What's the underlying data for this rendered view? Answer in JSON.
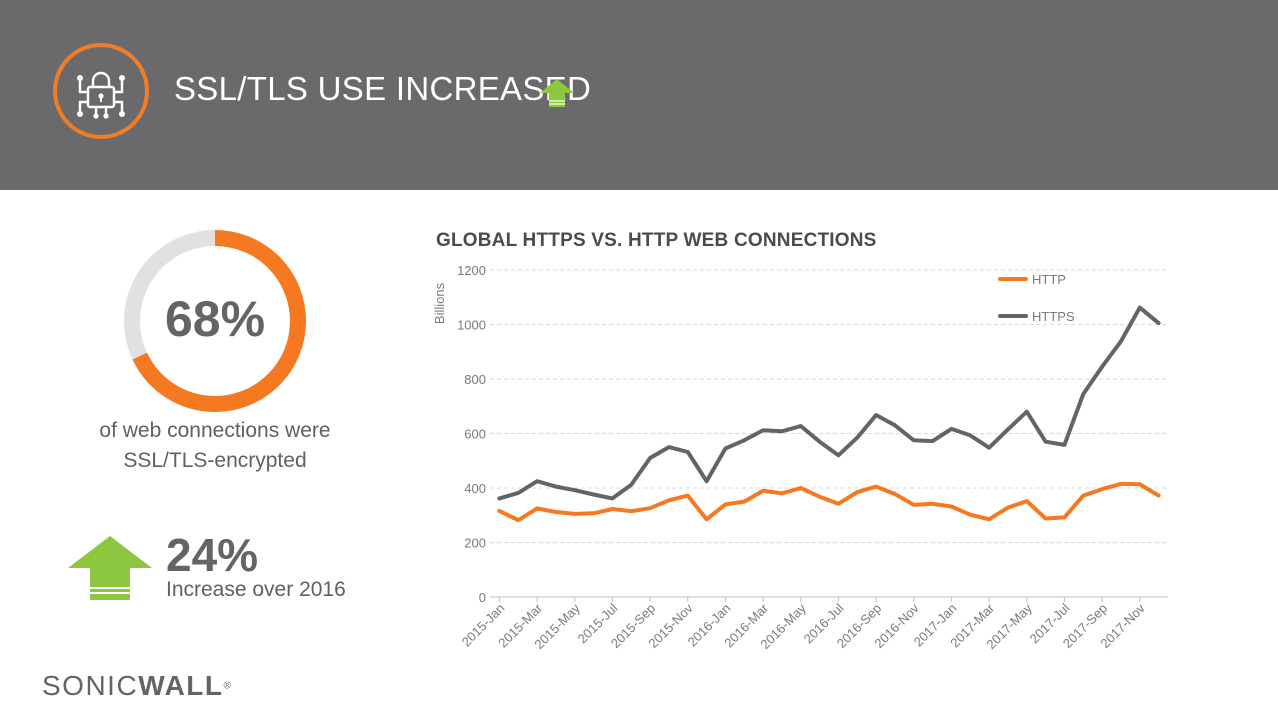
{
  "header": {
    "title": "SSL/TLS USE INCREASED",
    "icon": "lock-circuit-icon",
    "arrow_icon": "up-arrow-icon",
    "background_color": "#6a6a6c",
    "accent_color": "#f07e26",
    "arrow_color": "#8dc63f"
  },
  "stat_donut": {
    "value": "68%",
    "fraction": 0.68,
    "caption_line1": "of web connections were",
    "caption_line2": "SSL/TLS-encrypted",
    "fill_color": "#f47920",
    "track_color": "#e1e1e1"
  },
  "stat_increase": {
    "value": "24%",
    "caption": "Increase over 2016",
    "arrow_icon": "up-arrow-icon",
    "arrow_color": "#8dc63f"
  },
  "brand": {
    "text_light": "SONIC",
    "text_bold": "WALL",
    "mark": "®"
  },
  "chart_data": {
    "type": "line",
    "title": "GLOBAL HTTPS VS. HTTP WEB CONNECTIONS",
    "xlabel": "",
    "ylabel": "Billions",
    "ylim": [
      0,
      1200
    ],
    "yticks": [
      0,
      200,
      400,
      600,
      800,
      1000,
      1200
    ],
    "grid": true,
    "legend_position": "top-right",
    "x": [
      "2015-Jan",
      "2015-Feb",
      "2015-Mar",
      "2015-Apr",
      "2015-May",
      "2015-Jun",
      "2015-Jul",
      "2015-Aug",
      "2015-Sep",
      "2015-Oct",
      "2015-Nov",
      "2015-Dec",
      "2016-Jan",
      "2016-Feb",
      "2016-Mar",
      "2016-Apr",
      "2016-May",
      "2016-Jun",
      "2016-Jul",
      "2016-Aug",
      "2016-Sep",
      "2016-Oct",
      "2016-Nov",
      "2016-Dec",
      "2017-Jan",
      "2017-Feb",
      "2017-Mar",
      "2017-Apr",
      "2017-May",
      "2017-Jun",
      "2017-Jul",
      "2017-Aug",
      "2017-Sep",
      "2017-Oct",
      "2017-Nov",
      "2017-Dec"
    ],
    "tick_labels": [
      "2015-Jan",
      "2015-Mar",
      "2015-May",
      "2015-Jul",
      "2015-Sep",
      "2015-Nov",
      "2016-Jan",
      "2016-Mar",
      "2016-May",
      "2016-Jul",
      "2016-Sep",
      "2016-Nov",
      "2017-Jan",
      "2017-Mar",
      "2017-May",
      "2017-Jul",
      "2017-Sep",
      "2017-Nov"
    ],
    "series": [
      {
        "name": "HTTP",
        "color": "#f47920",
        "values": [
          316,
          282,
          325,
          312,
          305,
          307,
          323,
          315,
          326,
          355,
          372,
          285,
          340,
          350,
          390,
          380,
          400,
          368,
          342,
          385,
          405,
          378,
          338,
          342,
          332,
          302,
          285,
          328,
          352,
          288,
          292,
          372,
          396,
          415,
          414,
          372
        ]
      },
      {
        "name": "HTTPS",
        "color": "#636466",
        "values": [
          362,
          382,
          425,
          405,
          392,
          376,
          362,
          412,
          510,
          550,
          532,
          425,
          545,
          575,
          612,
          608,
          627,
          570,
          520,
          585,
          668,
          630,
          575,
          572,
          617,
          593,
          548,
          615,
          680,
          570,
          558,
          745,
          845,
          938,
          1062,
          1005
        ]
      }
    ]
  }
}
